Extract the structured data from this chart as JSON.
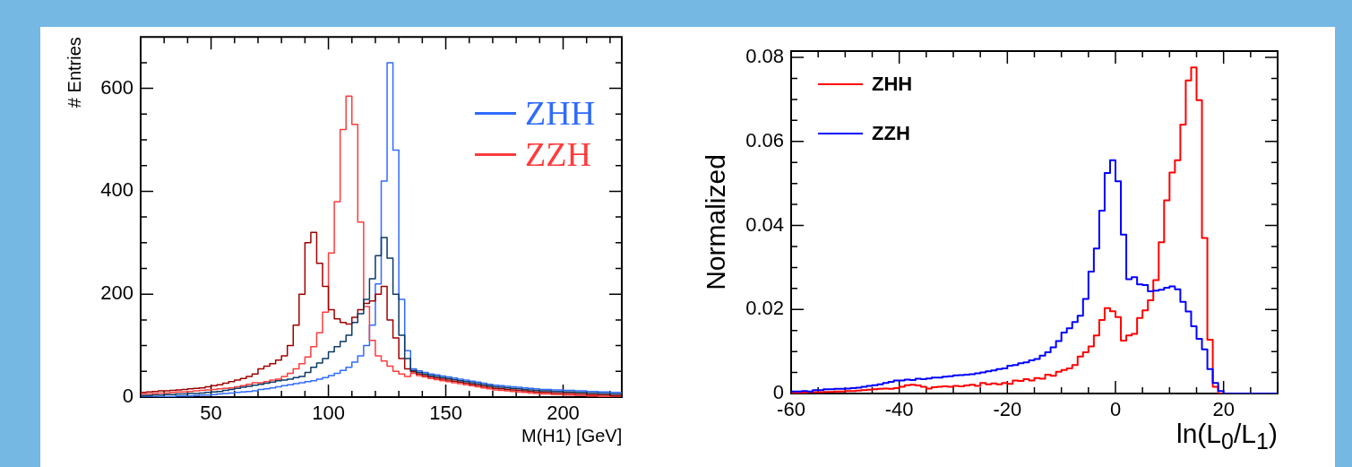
{
  "chart_data": [
    {
      "type": "histogram",
      "xlabel": "M(H1) [GeV]",
      "ylabel": "# Entries",
      "xlim": [
        20,
        225
      ],
      "ylim": [
        0,
        700
      ],
      "xticks": [
        {
          "value": 30,
          "label": null
        },
        {
          "value": 40,
          "label": null
        },
        50,
        {
          "value": 60,
          "label": null
        },
        {
          "value": 70,
          "label": null
        },
        {
          "value": 80,
          "label": null
        },
        {
          "value": 90,
          "label": null
        },
        100,
        {
          "value": 110,
          "label": null
        },
        {
          "value": 120,
          "label": null
        },
        {
          "value": 130,
          "label": null
        },
        {
          "value": 140,
          "label": null
        },
        150,
        {
          "value": 160,
          "label": null
        },
        {
          "value": 170,
          "label": null
        },
        {
          "value": 180,
          "label": null
        },
        {
          "value": 190,
          "label": null
        },
        200,
        {
          "value": 210,
          "label": null
        },
        {
          "value": 220,
          "label": null
        }
      ],
      "yticks": [
        0,
        {
          "value": 50,
          "label": null
        },
        {
          "value": 100,
          "label": null
        },
        {
          "value": 150,
          "label": null
        },
        200,
        {
          "value": 250,
          "label": null
        },
        {
          "value": 300,
          "label": null
        },
        {
          "value": 350,
          "label": null
        },
        400,
        {
          "value": 450,
          "label": null
        },
        {
          "value": 500,
          "label": null
        },
        {
          "value": 550,
          "label": null
        },
        600,
        {
          "value": 650,
          "label": null
        }
      ],
      "legend": "top right",
      "bins": [
        20,
        22.5,
        25,
        27.5,
        30,
        32.5,
        35,
        37.5,
        40,
        42.5,
        45,
        47.5,
        50,
        52.5,
        55,
        57.5,
        60,
        62.5,
        65,
        67.5,
        70,
        72.5,
        75,
        77.5,
        80,
        82.5,
        85,
        87.5,
        90,
        92.5,
        95,
        97.5,
        100,
        102.5,
        105,
        107.5,
        110,
        112.5,
        115,
        117.5,
        120,
        122.5,
        125,
        127.5,
        130,
        132.5,
        135,
        137.5,
        140,
        142.5,
        145,
        147.5,
        150,
        152.5,
        155,
        157.5,
        160,
        162.5,
        165,
        167.5,
        170,
        172.5,
        175,
        177.5,
        180,
        182.5,
        185,
        187.5,
        190,
        192.5,
        195,
        197.5,
        200,
        202.5,
        205,
        207.5,
        210,
        212.5,
        215,
        217.5,
        220,
        222.5,
        225
      ],
      "series": [
        {
          "name": "ZHH",
          "color": "#2f6bff",
          "values": [
            0,
            0,
            0,
            1,
            1,
            1,
            2,
            2,
            2,
            3,
            4,
            4,
            5,
            6,
            7,
            8,
            9,
            10,
            11,
            12,
            15,
            16,
            18,
            20,
            22,
            24,
            26,
            28,
            30,
            32,
            35,
            38,
            42,
            46,
            52,
            58,
            68,
            80,
            100,
            140,
            220,
            420,
            650,
            480,
            190,
            90,
            55,
            51,
            48,
            45,
            43,
            41,
            39,
            37,
            35,
            33,
            31,
            29,
            27,
            25,
            23,
            22,
            21,
            20,
            19,
            18,
            17,
            16,
            15,
            15,
            14,
            14,
            13,
            13,
            12,
            12,
            11,
            11,
            10,
            10,
            9,
            9
          ]
        },
        {
          "name": "ZZH",
          "color": "#ff3b3b",
          "values": [
            6,
            6,
            7,
            8,
            8,
            9,
            10,
            10,
            11,
            12,
            13,
            14,
            15,
            16,
            17,
            18,
            20,
            22,
            25,
            28,
            28,
            30,
            33,
            35,
            40,
            46,
            55,
            65,
            78,
            98,
            125,
            165,
            280,
            380,
            520,
            585,
            530,
            340,
            176,
            110,
            80,
            70,
            60,
            50,
            45,
            40,
            46,
            42,
            39,
            36,
            34,
            32,
            30,
            28,
            26,
            24,
            22,
            20,
            18,
            16,
            14,
            13,
            12,
            11,
            10,
            9,
            8,
            7,
            6,
            6,
            5,
            5,
            4,
            4,
            3,
            3,
            2,
            2,
            1,
            1,
            0,
            0
          ]
        },
        {
          "color": "#a00000",
          "values": [
            9,
            10,
            11,
            12,
            12,
            13,
            14,
            15,
            16,
            17,
            18,
            20,
            22,
            24,
            27,
            30,
            33,
            36,
            40,
            45,
            55,
            60,
            65,
            72,
            80,
            100,
            140,
            200,
            300,
            320,
            260,
            215,
            170,
            152,
            145,
            142,
            155,
            170,
            182,
            187,
            200,
            215,
            150,
            115,
            75,
            55,
            49,
            45,
            42,
            39,
            37,
            35,
            33,
            31,
            29,
            27,
            25,
            23,
            21,
            19,
            17,
            16,
            15,
            14,
            13,
            12,
            11,
            10,
            9,
            9,
            8,
            8,
            7,
            7,
            6,
            6,
            5,
            5,
            4,
            4,
            3,
            3
          ]
        },
        {
          "color": "#0b3a66",
          "values": [
            3,
            3,
            4,
            4,
            5,
            5,
            6,
            6,
            7,
            7,
            8,
            9,
            10,
            11,
            13,
            15,
            17,
            19,
            21,
            23,
            25,
            27,
            29,
            32,
            33,
            35,
            38,
            40,
            48,
            58,
            66,
            75,
            88,
            98,
            108,
            120,
            145,
            162,
            190,
            230,
            275,
            310,
            270,
            200,
            120,
            75,
            52,
            48,
            45,
            42,
            40,
            38,
            36,
            34,
            32,
            30,
            28,
            26,
            24,
            22,
            20,
            19,
            18,
            17,
            16,
            15,
            14,
            13,
            12,
            12,
            11,
            11,
            10,
            10,
            9,
            9,
            8,
            8,
            7,
            7,
            6,
            6
          ]
        }
      ]
    },
    {
      "type": "histogram",
      "xlabel": "ln(L$_{0}$/L$_{1}$)",
      "ylabel": "Normalized",
      "xlim": [
        -60,
        30
      ],
      "ylim": [
        0,
        0.0815
      ],
      "xticks": [
        -60,
        {
          "value": -55,
          "label": null
        },
        {
          "value": -50,
          "label": null
        },
        {
          "value": -45,
          "label": null
        },
        -40,
        {
          "value": -35,
          "label": null
        },
        {
          "value": -30,
          "label": null
        },
        {
          "value": -25,
          "label": null
        },
        -20,
        {
          "value": -15,
          "label": null
        },
        {
          "value": -10,
          "label": null
        },
        {
          "value": -5,
          "label": null
        },
        0,
        {
          "value": 5,
          "label": null
        },
        {
          "value": 10,
          "label": null
        },
        {
          "value": 15,
          "label": null
        },
        20,
        {
          "value": 25,
          "label": null
        }
      ],
      "yticks": [
        0,
        {
          "value": 0.005,
          "label": null
        },
        {
          "value": 0.01,
          "label": null
        },
        {
          "value": 0.015,
          "label": null
        },
        0.02,
        {
          "value": 0.025,
          "label": null
        },
        {
          "value": 0.03,
          "label": null
        },
        {
          "value": 0.035,
          "label": null
        },
        0.04,
        {
          "value": 0.045,
          "label": null
        },
        {
          "value": 0.05,
          "label": null
        },
        {
          "value": 0.055,
          "label": null
        },
        0.06,
        {
          "value": 0.065,
          "label": null
        },
        {
          "value": 0.07,
          "label": null
        },
        {
          "value": 0.075,
          "label": null
        },
        0.08
      ],
      "legend": "top left",
      "bins": [
        -60,
        -59,
        -58,
        -57,
        -56,
        -55,
        -54,
        -53,
        -52,
        -51,
        -50,
        -49,
        -48,
        -47,
        -46,
        -45,
        -44,
        -43,
        -42,
        -41,
        -40,
        -39,
        -38,
        -37,
        -36,
        -35,
        -34,
        -33,
        -32,
        -31,
        -30,
        -29,
        -28,
        -27,
        -26,
        -25,
        -24,
        -23,
        -22,
        -21,
        -20,
        -19,
        -18,
        -17,
        -16,
        -15,
        -14,
        -13,
        -12,
        -11,
        -10,
        -9,
        -8,
        -7,
        -6,
        -5,
        -4,
        -3,
        -2,
        -1,
        0,
        1,
        2,
        3,
        4,
        5,
        6,
        7,
        8,
        9,
        10,
        11,
        12,
        13,
        14,
        15,
        16,
        17,
        18,
        19,
        20,
        21,
        22,
        23,
        24,
        25,
        26,
        27,
        28,
        29,
        30
      ],
      "series": [
        {
          "name": "ZHH",
          "color": "#ff0000",
          "values": [
            0.0002,
            0.0002,
            0.0002,
            0.0003,
            0.0003,
            0.0003,
            0.0004,
            0.0004,
            0.0005,
            0.0005,
            0.0006,
            0.0006,
            0.0007,
            0.0008,
            0.0009,
            0.001,
            0.0011,
            0.0012,
            0.0011,
            0.0013,
            0.0016,
            0.002,
            0.0021,
            0.0019,
            0.0016,
            0.0012,
            0.0015,
            0.0016,
            0.0017,
            0.0016,
            0.0018,
            0.0017,
            0.0019,
            0.0021,
            0.0018,
            0.0025,
            0.0022,
            0.0024,
            0.0022,
            0.0025,
            0.0023,
            0.0031,
            0.003,
            0.0034,
            0.0031,
            0.0037,
            0.0035,
            0.0045,
            0.0042,
            0.0052,
            0.0056,
            0.006,
            0.0068,
            0.0088,
            0.0098,
            0.0112,
            0.0138,
            0.0175,
            0.0203,
            0.0196,
            0.0182,
            0.0126,
            0.0138,
            0.0142,
            0.018,
            0.0198,
            0.0222,
            0.027,
            0.036,
            0.046,
            0.0526,
            0.0555,
            0.064,
            0.0745,
            0.0776,
            0.0698,
            0.037,
            0.0128,
            0.0016,
            0,
            0,
            0,
            0,
            0,
            0,
            0,
            0,
            0,
            0,
            0
          ]
        },
        {
          "name": "ZZH",
          "color": "#0000ff",
          "values": [
            0.0005,
            0.0005,
            0.0006,
            0.0005,
            0.0008,
            0.0008,
            0.001,
            0.001,
            0.0011,
            0.0011,
            0.0012,
            0.0013,
            0.0014,
            0.0016,
            0.0018,
            0.002,
            0.0022,
            0.0025,
            0.0028,
            0.0031,
            0.0031,
            0.0033,
            0.0032,
            0.0035,
            0.0034,
            0.0036,
            0.0038,
            0.0038,
            0.004,
            0.0041,
            0.0043,
            0.0044,
            0.0045,
            0.0046,
            0.0048,
            0.005,
            0.0053,
            0.0055,
            0.0058,
            0.006,
            0.0066,
            0.0068,
            0.0072,
            0.0074,
            0.0079,
            0.0082,
            0.009,
            0.0098,
            0.011,
            0.0125,
            0.0145,
            0.0155,
            0.017,
            0.0185,
            0.0225,
            0.029,
            0.0345,
            0.0435,
            0.0525,
            0.0555,
            0.0505,
            0.0378,
            0.0272,
            0.0277,
            0.026,
            0.0258,
            0.0243,
            0.0245,
            0.0247,
            0.0252,
            0.0255,
            0.0248,
            0.0218,
            0.0195,
            0.016,
            0.013,
            0.0105,
            0.0058,
            0.0025,
            0.0006,
            0,
            0,
            0,
            0,
            0,
            0,
            0,
            0,
            0,
            0
          ]
        }
      ]
    }
  ]
}
